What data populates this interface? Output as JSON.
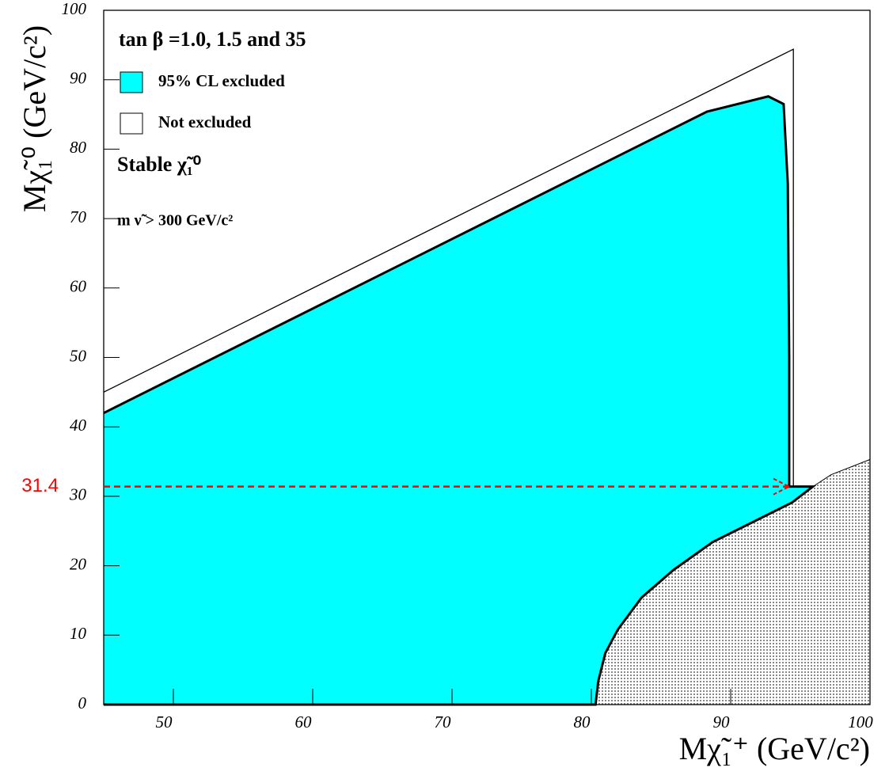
{
  "chart_data": {
    "type": "area",
    "x_label": "Mχ̃₁⁺ (GeV/c²)",
    "y_label": "Mχ̃₁⁰ (GeV/c²)",
    "annotations": [
      "tan β =1.0, 1.5 and 35",
      "Stable χ̃₁⁰",
      "m ν̃ > 300 GeV/c²"
    ],
    "xlim": [
      45,
      100
    ],
    "ylim": [
      0,
      100
    ],
    "xticks": [
      50,
      60,
      70,
      80,
      90,
      100
    ],
    "yticks": [
      0,
      10,
      20,
      30,
      40,
      50,
      60,
      70,
      80,
      90,
      100
    ],
    "regions": [
      {
        "name": "95% CL excluded",
        "color": "#00ffff",
        "x": [
          45,
          88.3,
          92.7,
          93.8,
          94.1,
          94.2,
          94.2,
          95.9,
          94.4,
          91.5,
          88.7,
          85.9,
          83.6,
          81.9,
          81.0,
          80.5,
          80.3,
          45
        ],
        "y": [
          42,
          85.4,
          87.6,
          86.5,
          75,
          50,
          31.4,
          31.4,
          29.1,
          26.2,
          23.4,
          19.4,
          15.4,
          10.8,
          7.4,
          3.4,
          0,
          0
        ]
      },
      {
        "name": "Not excluded",
        "color": "#ffffff",
        "x": [
          45,
          94.5,
          94.5
        ],
        "y": [
          45,
          94.4,
          31.4
        ]
      }
    ],
    "forbidden": {
      "color": "#888888",
      "x": [
        80.3,
        80.5,
        81.0,
        81.9,
        83.6,
        85.9,
        88.7,
        91.5,
        94.4,
        95.9,
        97.2,
        100,
        100
      ],
      "y": [
        0,
        3.4,
        7.4,
        10.8,
        15.4,
        19.4,
        23.4,
        26.2,
        29.1,
        31.4,
        33.1,
        35.3,
        0
      ]
    },
    "hline": {
      "value": 31.4,
      "color": "#ff0000"
    }
  }
}
